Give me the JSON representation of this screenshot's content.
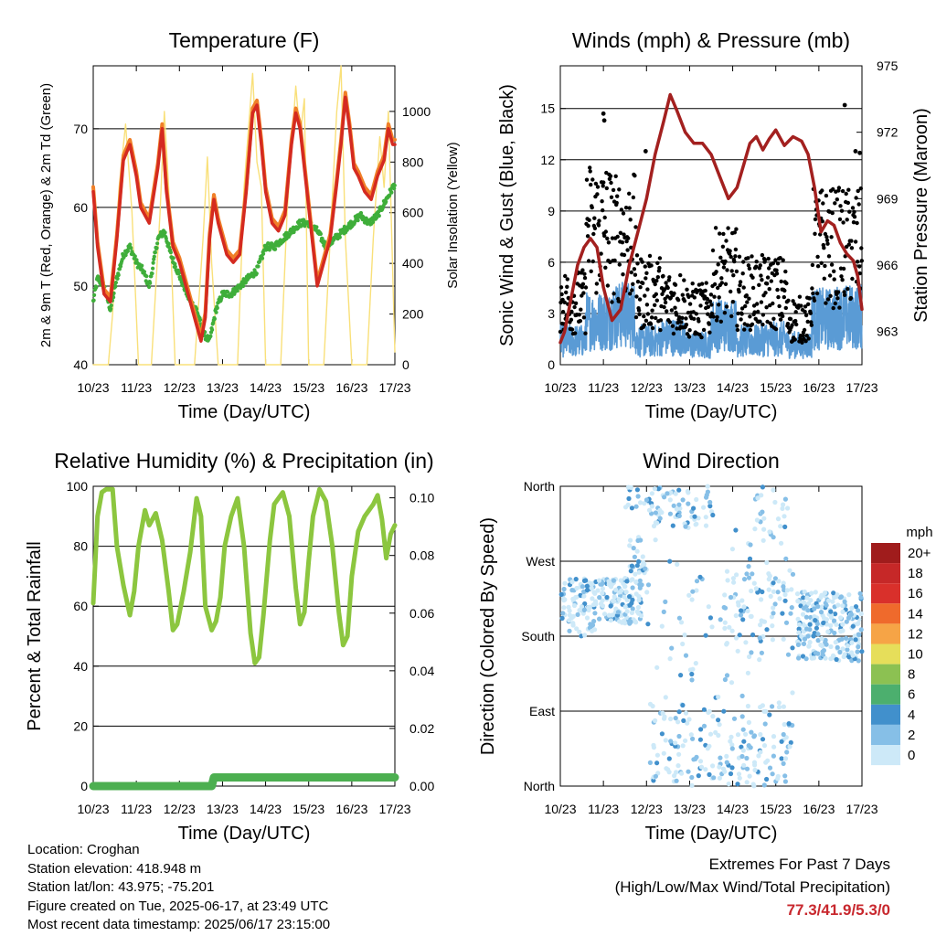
{
  "colors": {
    "temp2m": "#d42a20",
    "temp9m": "#f07f28",
    "dewpoint": "#3fae3a",
    "solar": "#f9e07a",
    "wind": "#5a9bd5",
    "gust": "#000000",
    "pressure": "#a3201f",
    "rh": "#8cc63f",
    "precip": "#4caf50",
    "extremes_value": "#c8282e"
  },
  "info": {
    "location": "Location: Croghan",
    "elevation": "Station elevation: 418.948 m",
    "latlon": "Station lat/lon: 43.975; -75.201",
    "created": "Figure created on Tue, 2025-06-17, at 23:49 UTC",
    "recent": "Most recent data timestamp: 2025/06/17 23:15:00"
  },
  "extremes": {
    "title": "Extremes For Past 7 Days",
    "subtitle": "(High/Low/Max Wind/Total Precipitation)",
    "value": "77.3/41.9/5.3/0"
  },
  "chart_data": [
    {
      "id": "temperature",
      "type": "line",
      "title": "Temperature (F)",
      "xlabel": "Time (Day/UTC)",
      "ylabel": "2m & 9m T (Red, Orange) & 2m Td (Green)",
      "y2label": "Solar Insolation (Yellow)",
      "xticks": [
        "10/23",
        "11/23",
        "12/23",
        "13/23",
        "14/23",
        "15/23",
        "16/23",
        "17/23"
      ],
      "xlim": [
        0,
        7
      ],
      "ylim": [
        40,
        78
      ],
      "yticks": [
        40,
        50,
        60,
        70
      ],
      "y2lim": [
        0,
        1180
      ],
      "y2ticks": [
        0,
        200,
        400,
        600,
        800,
        1000
      ],
      "series": [
        {
          "key": "temp2m",
          "x": [
            0,
            0.1,
            0.25,
            0.4,
            0.55,
            0.7,
            0.85,
            1.0,
            1.1,
            1.3,
            1.5,
            1.6,
            1.7,
            1.85,
            2.0,
            2.1,
            2.2,
            2.4,
            2.5,
            2.6,
            2.7,
            2.8,
            2.9,
            3.0,
            3.1,
            3.25,
            3.4,
            3.55,
            3.7,
            3.8,
            3.9,
            4.0,
            4.15,
            4.3,
            4.45,
            4.6,
            4.7,
            4.8,
            4.9,
            5.0,
            5.1,
            5.2,
            5.35,
            5.5,
            5.65,
            5.75,
            5.85,
            5.95,
            6.05,
            6.15,
            6.3,
            6.45,
            6.6,
            6.75,
            6.85,
            6.95,
            7.0
          ],
          "y": [
            62,
            55,
            49,
            48,
            56,
            66,
            68,
            64,
            60,
            58,
            65,
            70,
            62,
            55,
            53,
            51,
            49,
            45,
            43,
            46,
            56,
            61,
            58,
            56,
            54,
            53,
            54,
            62,
            72,
            73,
            68,
            62,
            58,
            57,
            59,
            68,
            72,
            70,
            65,
            60,
            55,
            50,
            53,
            56,
            63,
            68,
            74,
            70,
            65,
            64,
            62,
            61,
            64,
            66,
            70,
            68,
            68
          ]
        },
        {
          "key": "dewpoint",
          "x": [
            0,
            0.1,
            0.25,
            0.4,
            0.55,
            0.7,
            0.85,
            1.0,
            1.15,
            1.3,
            1.5,
            1.65,
            1.8,
            1.95,
            2.1,
            2.25,
            2.4,
            2.55,
            2.7,
            2.85,
            3.0,
            3.2,
            3.4,
            3.6,
            3.8,
            4.0,
            4.2,
            4.4,
            4.6,
            4.8,
            5.0,
            5.2,
            5.4,
            5.6,
            5.8,
            6.0,
            6.2,
            6.4,
            6.6,
            6.8,
            7.0
          ],
          "y": [
            48,
            51,
            50,
            47,
            51,
            54,
            55,
            53,
            52,
            50,
            56,
            57,
            54,
            52,
            50,
            48,
            47,
            44,
            43,
            47,
            49,
            49,
            50,
            51,
            52,
            55,
            55,
            56,
            57,
            58,
            58,
            57,
            55,
            56,
            57,
            58,
            59,
            58,
            59,
            61,
            63
          ]
        },
        {
          "key": "solar",
          "x": [
            0,
            0.35,
            0.45,
            0.6,
            0.75,
            0.9,
            1.05,
            1.35,
            1.55,
            1.65,
            1.75,
            1.9,
            2.35,
            2.55,
            2.65,
            2.75,
            2.9,
            3.35,
            3.5,
            3.7,
            3.8,
            3.9,
            4.0,
            4.35,
            4.5,
            4.7,
            4.8,
            4.9,
            5.0,
            5.35,
            5.5,
            5.65,
            5.75,
            5.85,
            6.0,
            6.35,
            6.5,
            6.65,
            6.75,
            6.85,
            7.0
          ],
          "y": [
            0,
            0,
            200,
            700,
            950,
            600,
            0,
            0,
            600,
            1000,
            700,
            0,
            0,
            500,
            820,
            400,
            0,
            0,
            700,
            1150,
            800,
            700,
            0,
            0,
            600,
            1100,
            900,
            1050,
            0,
            0,
            500,
            1000,
            1180,
            500,
            0,
            0,
            500,
            900,
            700,
            1000,
            50
          ]
        }
      ]
    },
    {
      "id": "winds",
      "type": "line",
      "title": "Winds (mph) & Pressure (mb)",
      "xlabel": "Time (Day/UTC)",
      "ylabel": "Sonic Wind & Gust (Blue, Black)",
      "y2label": "Station Pressure (Maroon)",
      "xticks": [
        "10/23",
        "11/23",
        "12/23",
        "13/23",
        "14/23",
        "15/23",
        "16/23",
        "17/23"
      ],
      "xlim": [
        0,
        7
      ],
      "ylim": [
        0,
        17.5
      ],
      "yticks": [
        0,
        3,
        6,
        9,
        12,
        15
      ],
      "y2lim": [
        961.5,
        975
      ],
      "y2ticks": [
        963,
        966,
        969,
        972,
        975
      ],
      "series": [
        {
          "key": "pressure",
          "x": [
            0,
            0.1,
            0.25,
            0.4,
            0.55,
            0.7,
            0.85,
            1.0,
            1.2,
            1.4,
            1.6,
            1.8,
            2.0,
            2.2,
            2.4,
            2.55,
            2.7,
            2.9,
            3.1,
            3.3,
            3.5,
            3.7,
            3.9,
            4.1,
            4.25,
            4.4,
            4.55,
            4.7,
            4.85,
            5.0,
            5.2,
            5.4,
            5.6,
            5.75,
            5.9,
            6.05,
            6.2,
            6.35,
            6.5,
            6.65,
            6.8,
            6.9,
            7.0
          ],
          "y": [
            962.5,
            963,
            964.5,
            966,
            966.8,
            967.2,
            966.8,
            965,
            963.5,
            964,
            966,
            967.5,
            969,
            971,
            972.5,
            973.7,
            973,
            972,
            971.5,
            971.5,
            971,
            970,
            969,
            969.5,
            970.5,
            971.5,
            971.8,
            971.2,
            971.7,
            972.1,
            971.4,
            971.8,
            971.6,
            971,
            969.5,
            967.5,
            968,
            967.8,
            967,
            966.5,
            966.2,
            965.5,
            964
          ]
        }
      ],
      "wind_mean": [
        1.2,
        2.2,
        2.5,
        1.2,
        1.4,
        1.0,
        2.0,
        1.2,
        1.3,
        1.0,
        2.3,
        2.4
      ],
      "gust_mean": [
        3.5,
        7.5,
        7.0,
        4.0,
        3.5,
        3.0,
        5.0,
        4.0,
        4.0,
        2.5,
        6.5,
        6.5
      ],
      "gust_outliers": [
        [
          1.0,
          14.7
        ],
        [
          1.02,
          14.3
        ],
        [
          1.98,
          12.5
        ],
        [
          6.6,
          15.2
        ],
        [
          6.85,
          12.5
        ],
        [
          6.95,
          12.4
        ]
      ]
    },
    {
      "id": "humidity",
      "type": "line",
      "title": "Relative Humidity (%) & Precipitation (in)",
      "xlabel": "Time (Day/UTC)",
      "ylabel": "Percent & Total Rainfall",
      "xticks": [
        "10/23",
        "11/23",
        "12/23",
        "13/23",
        "14/23",
        "15/23",
        "16/23",
        "17/23"
      ],
      "xlim": [
        0,
        7
      ],
      "ylim": [
        0,
        100
      ],
      "yticks": [
        0,
        20,
        40,
        60,
        80,
        100
      ],
      "y2lim": [
        0,
        0.104
      ],
      "y2ticks": [
        "0.00",
        "0.02",
        "0.04",
        "0.06",
        "0.08",
        "0.10"
      ],
      "series": [
        {
          "key": "rh",
          "x": [
            0,
            0.1,
            0.2,
            0.3,
            0.45,
            0.55,
            0.7,
            0.85,
            0.95,
            1.05,
            1.2,
            1.3,
            1.45,
            1.6,
            1.75,
            1.85,
            1.95,
            2.1,
            2.25,
            2.4,
            2.5,
            2.6,
            2.75,
            2.85,
            2.95,
            3.05,
            3.2,
            3.35,
            3.5,
            3.65,
            3.75,
            3.85,
            3.95,
            4.1,
            4.2,
            4.4,
            4.55,
            4.7,
            4.8,
            4.9,
            5.0,
            5.1,
            5.25,
            5.4,
            5.55,
            5.7,
            5.8,
            5.9,
            6.0,
            6.15,
            6.3,
            6.5,
            6.6,
            6.7,
            6.8,
            6.9,
            7.0
          ],
          "y": [
            61,
            90,
            98,
            99,
            99,
            80,
            67,
            57,
            65,
            80,
            92,
            87,
            91,
            82,
            65,
            52,
            54,
            65,
            78,
            96,
            90,
            60,
            52,
            55,
            63,
            80,
            90,
            96,
            80,
            51,
            41,
            43,
            57,
            82,
            94,
            98,
            90,
            66,
            54,
            58,
            75,
            90,
            99,
            95,
            80,
            58,
            47,
            50,
            70,
            85,
            90,
            94,
            97,
            89,
            76,
            84,
            87
          ]
        },
        {
          "key": "precip",
          "x": [
            0,
            2.75,
            2.8,
            7.0
          ],
          "y": [
            0,
            0,
            0.003,
            0.003
          ]
        }
      ]
    },
    {
      "id": "direction",
      "type": "scatter",
      "title": "Wind Direction",
      "xlabel": "Time (Day/UTC)",
      "ylabel": "Direction (Colored By Speed)",
      "xticks": [
        "10/23",
        "11/23",
        "12/23",
        "13/23",
        "14/23",
        "15/23",
        "16/23",
        "17/23"
      ],
      "xlim": [
        0,
        7
      ],
      "ylim": [
        0,
        360
      ],
      "yticks": [
        "North",
        "East",
        "South",
        "West",
        "North"
      ],
      "legend": {
        "title": "mph",
        "labels": [
          "20+",
          "18",
          "16",
          "14",
          "12",
          "10",
          "8",
          "6",
          "4",
          "2",
          "0"
        ],
        "colors": [
          "#a01c1c",
          "#c62828",
          "#d9302b",
          "#ef6a2c",
          "#f6a446",
          "#e6de5a",
          "#8cc152",
          "#4caf6e",
          "#4190cc",
          "#86bfe7",
          "#cde9f8"
        ]
      },
      "clusters": [
        {
          "x0": 0.0,
          "x1": 0.8,
          "d0": 180,
          "d1": 250,
          "n": 90
        },
        {
          "x0": 0.8,
          "x1": 1.9,
          "d0": 195,
          "d1": 250,
          "n": 130
        },
        {
          "x0": 1.6,
          "x1": 2.0,
          "d0": 250,
          "d1": 300,
          "n": 25
        },
        {
          "x0": 1.5,
          "x1": 2.0,
          "d0": 330,
          "d1": 360,
          "n": 12
        },
        {
          "x0": 2.0,
          "x1": 3.6,
          "d0": 310,
          "d1": 360,
          "n": 70
        },
        {
          "x0": 2.0,
          "x1": 5.4,
          "d0": 0,
          "d1": 90,
          "n": 170
        },
        {
          "x0": 2.0,
          "x1": 5.4,
          "d0": 90,
          "d1": 310,
          "n": 90
        },
        {
          "x0": 3.8,
          "x1": 5.4,
          "d0": 170,
          "d1": 260,
          "n": 70
        },
        {
          "x0": 4.5,
          "x1": 5.3,
          "d0": 300,
          "d1": 360,
          "n": 25
        },
        {
          "x0": 5.5,
          "x1": 7.0,
          "d0": 150,
          "d1": 235,
          "n": 230
        }
      ]
    }
  ]
}
